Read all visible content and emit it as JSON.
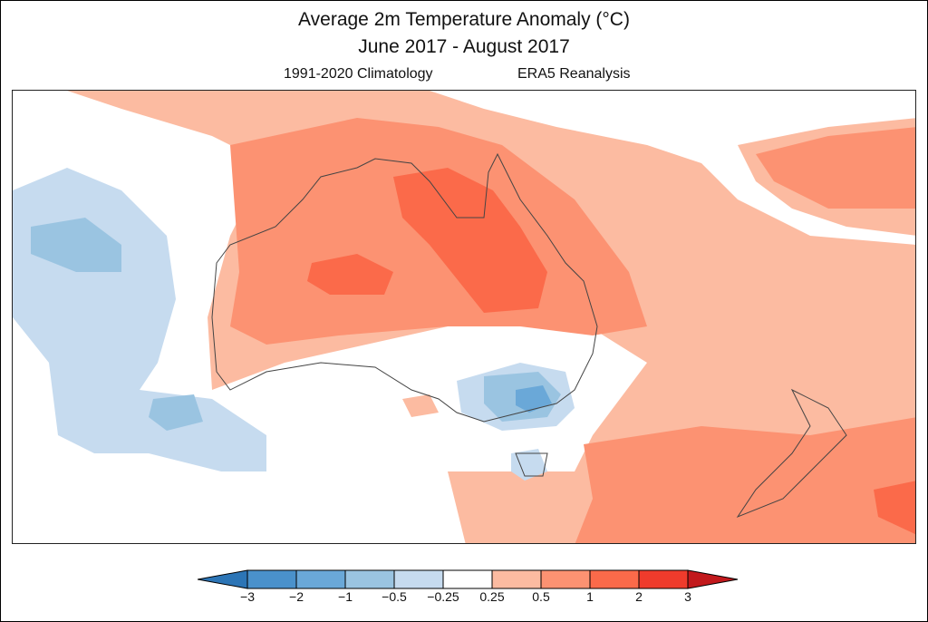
{
  "header": {
    "title": "Average 2m Temperature Anomaly (°C)",
    "period": "June 2017 - August 2017",
    "climatology": "1991-2020 Climatology",
    "dataset": "ERA5 Reanalysis"
  },
  "colorbar": {
    "labels": [
      "−3",
      "−2",
      "−1",
      "−0.5",
      "−0.25",
      "0.25",
      "0.5",
      "1",
      "2",
      "3"
    ],
    "colors": [
      "#2c75b6",
      "#4a91cb",
      "#6aa8d8",
      "#9ac4e1",
      "#c6dbef",
      "#ffffff",
      "#fcbba1",
      "#fc9272",
      "#fb6a4a",
      "#ef3b2c",
      "#c2191c"
    ]
  },
  "map": {
    "region": "Australia and surrounding oceans",
    "anomaly_colors": {
      "neg05": "#c6dbef",
      "neg1": "#9ac4e1",
      "neg2": "#6aa8d8",
      "pos025": "#fcbba1",
      "pos05": "#fc9272",
      "pos1": "#fb6a4a",
      "pos2": "#ef3b2c"
    }
  }
}
